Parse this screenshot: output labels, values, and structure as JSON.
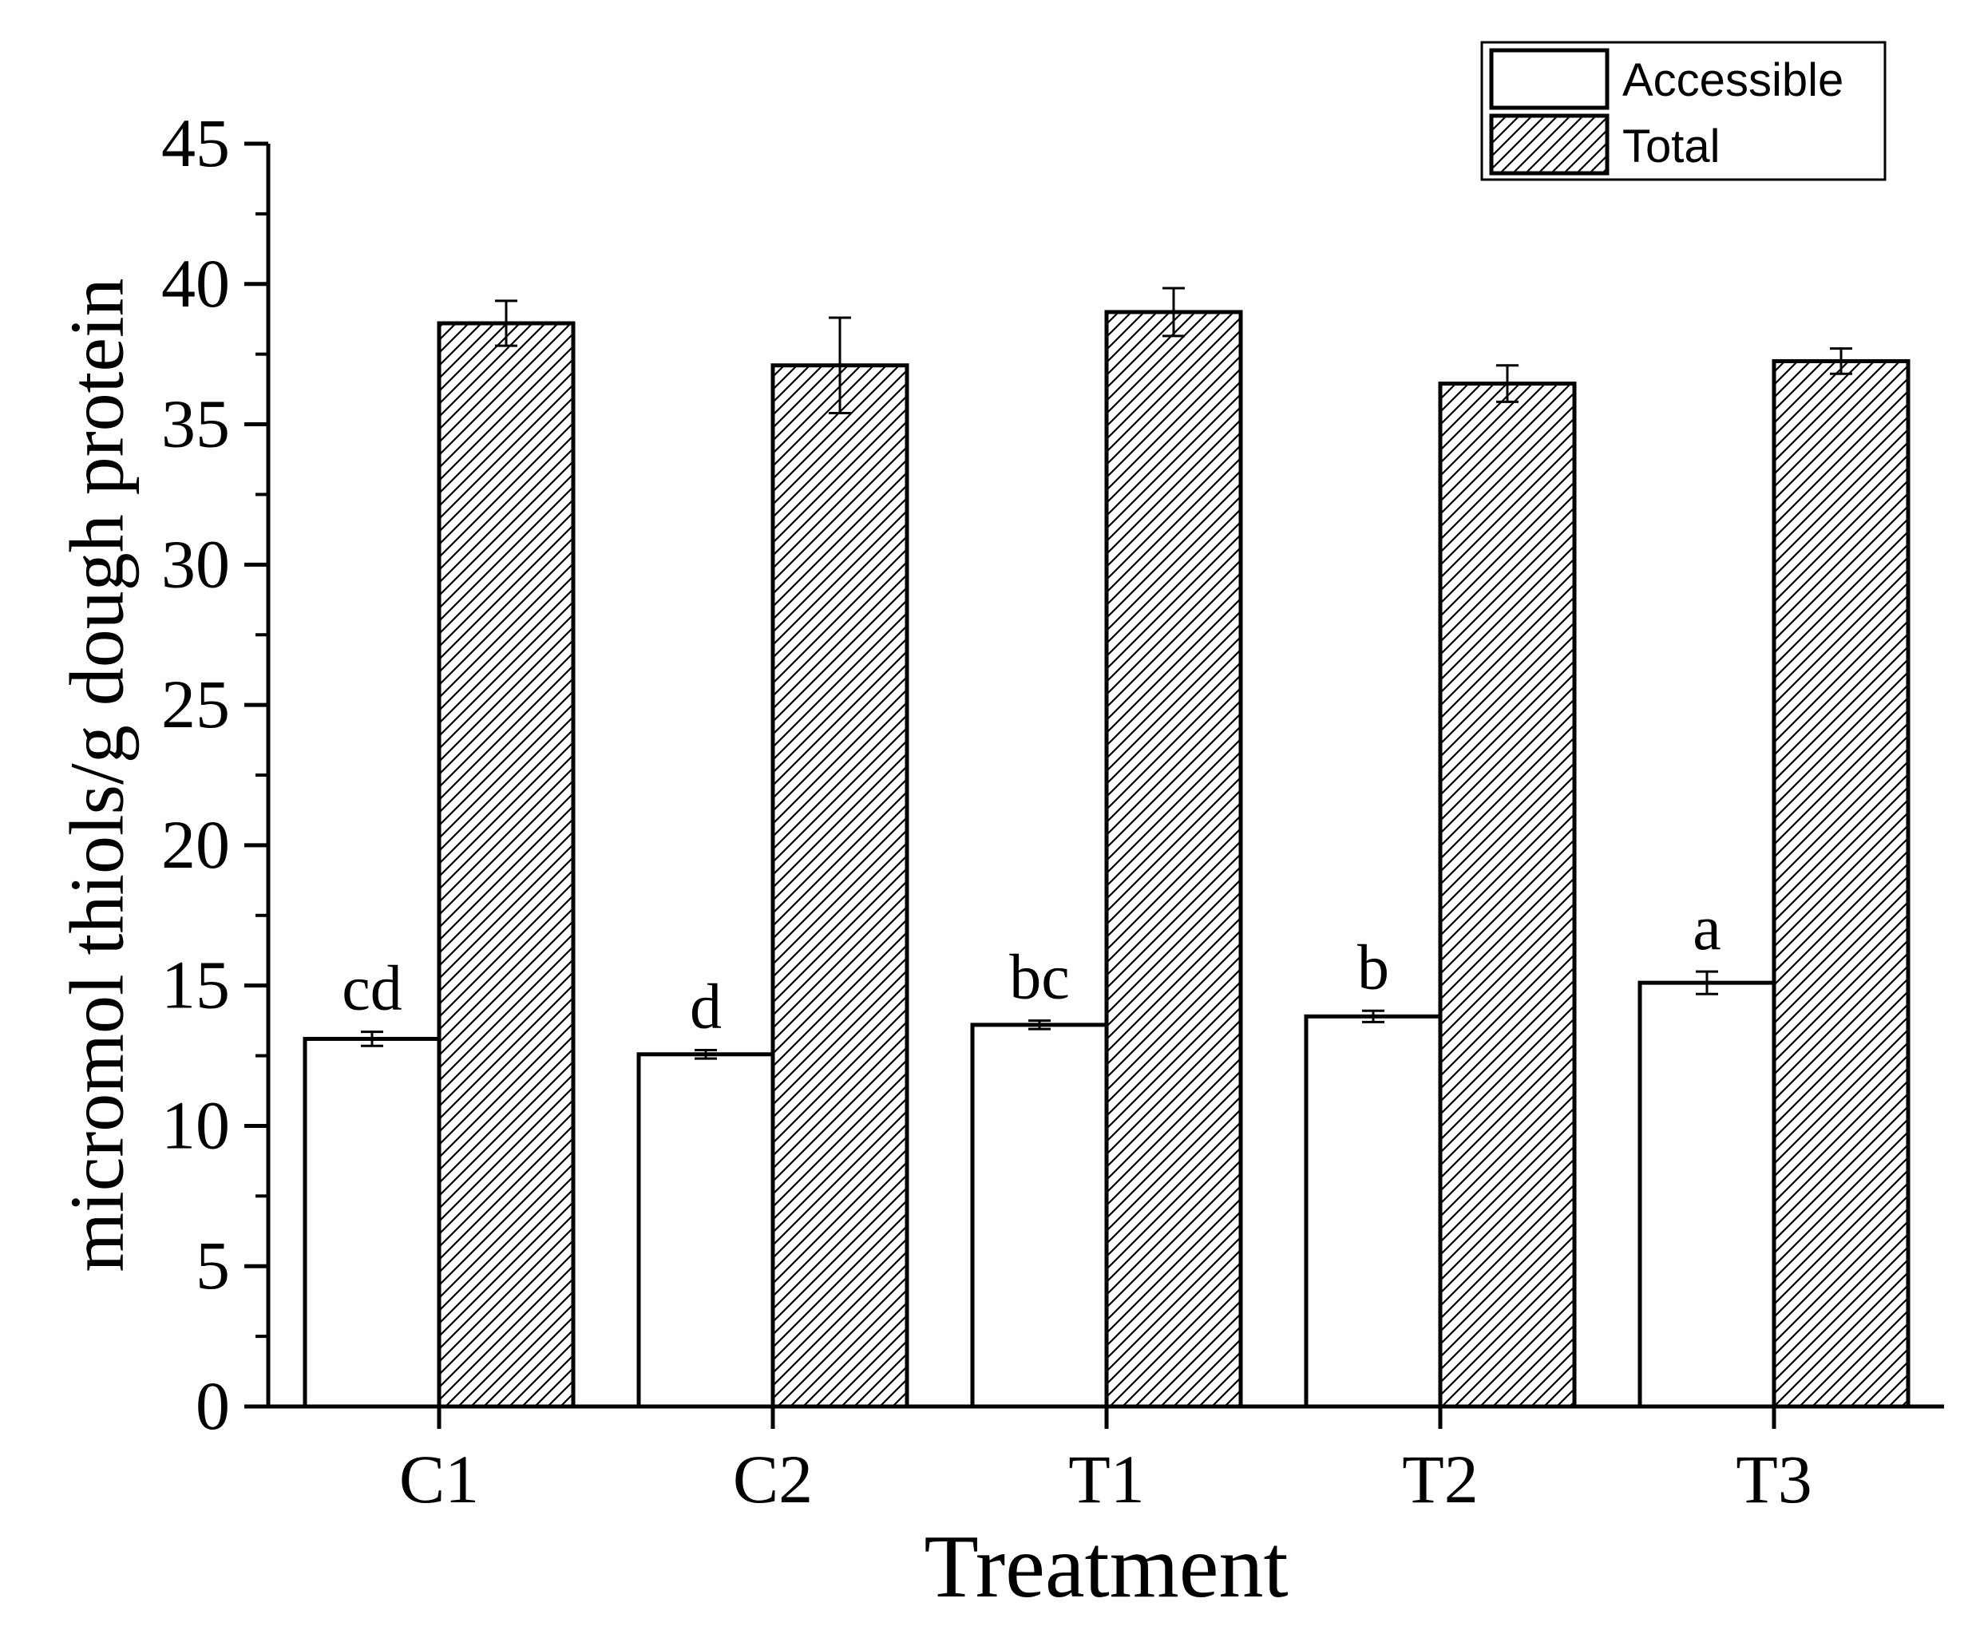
{
  "chart_data": {
    "type": "bar",
    "xlabel": "Treatment",
    "ylabel": "micromol thiols/g dough protein",
    "categories": [
      "C1",
      "C2",
      "T1",
      "T2",
      "T3"
    ],
    "ylim": [
      0,
      45
    ],
    "yticks": [
      0,
      5,
      10,
      15,
      20,
      25,
      30,
      35,
      40,
      45
    ],
    "grid": false,
    "legend_position": "top-right",
    "series": [
      {
        "name": "Accessible",
        "fill": "white",
        "values": [
          13.1,
          12.55,
          13.6,
          13.9,
          15.1
        ],
        "errors": [
          0.25,
          0.15,
          0.15,
          0.2,
          0.4
        ],
        "labels": [
          "cd",
          "d",
          "bc",
          "b",
          "a"
        ]
      },
      {
        "name": "Total",
        "fill": "hatched",
        "values": [
          38.6,
          37.1,
          39.0,
          36.45,
          37.25
        ],
        "errors": [
          0.8,
          1.7,
          0.85,
          0.65,
          0.45
        ]
      }
    ],
    "colors": {
      "stroke": "#000000",
      "background": "#ffffff"
    }
  }
}
